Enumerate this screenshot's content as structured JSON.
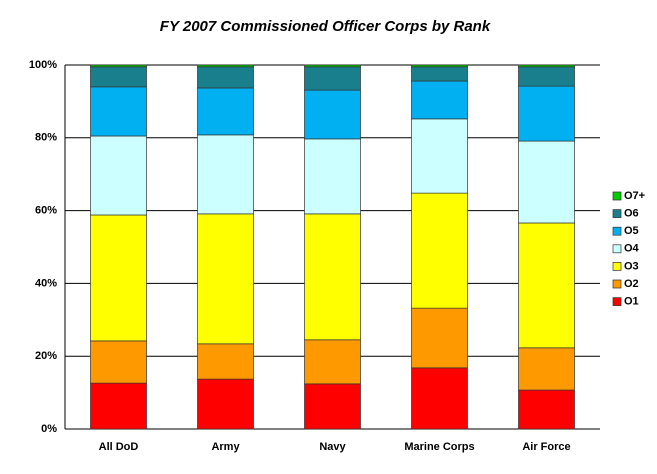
{
  "chart_data": {
    "type": "stacked_bar",
    "title": "FY 2007 Commissioned Officer Corps by Rank",
    "categories": [
      "All DoD",
      "Army",
      "Navy",
      "Marine Corps",
      "Air Force"
    ],
    "series": [
      {
        "name": "O1",
        "color": "#ff0000",
        "values": [
          12.6,
          13.7,
          12.4,
          16.8,
          10.7
        ]
      },
      {
        "name": "O2",
        "color": "#ff9900",
        "values": [
          11.6,
          9.7,
          12.1,
          16.4,
          11.6
        ]
      },
      {
        "name": "O3",
        "color": "#ffff00",
        "values": [
          34.6,
          35.7,
          34.6,
          31.6,
          34.3
        ]
      },
      {
        "name": "O4",
        "color": "#ccffff",
        "values": [
          21.7,
          21.7,
          20.6,
          20.4,
          22.5
        ]
      },
      {
        "name": "O5",
        "color": "#00b0f0",
        "values": [
          13.5,
          12.9,
          13.4,
          10.4,
          15.1
        ]
      },
      {
        "name": "O6",
        "color": "#1a7f8c",
        "values": [
          5.5,
          5.8,
          6.4,
          3.9,
          5.3
        ]
      },
      {
        "name": "O7+",
        "color": "#00cc00",
        "values": [
          0.5,
          0.5,
          0.5,
          0.5,
          0.5
        ]
      }
    ],
    "ylim": [
      0,
      100
    ],
    "yticks": [
      {
        "value": 0,
        "label": "0%"
      },
      {
        "value": 20,
        "label": "20%"
      },
      {
        "value": 40,
        "label": "40%"
      },
      {
        "value": 60,
        "label": "60%"
      },
      {
        "value": 80,
        "label": "80%"
      },
      {
        "value": 100,
        "label": "100%"
      }
    ],
    "grid": true,
    "legend": "right"
  }
}
